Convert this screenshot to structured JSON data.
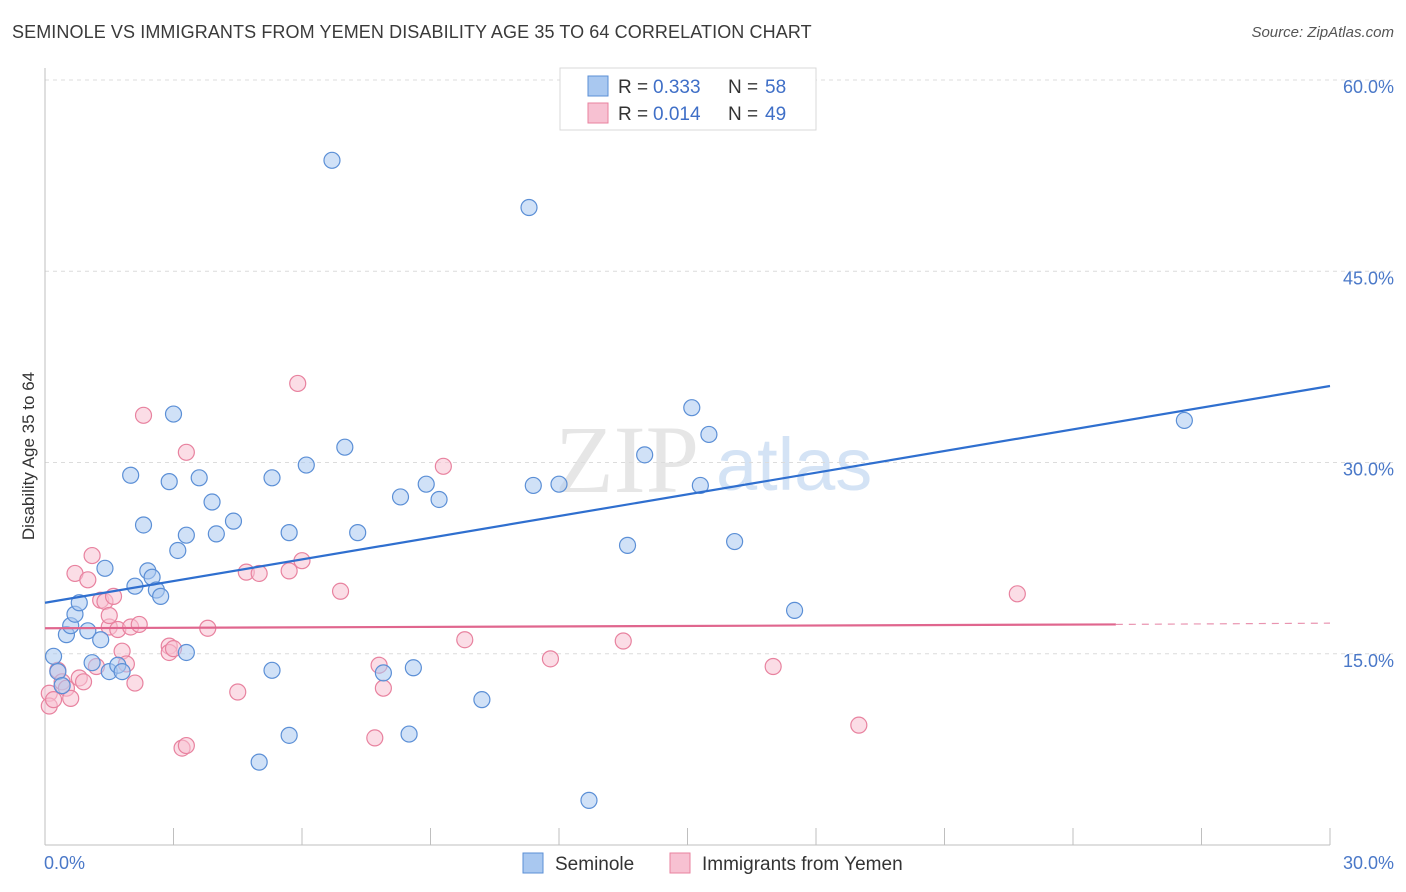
{
  "header": {
    "title": "SEMINOLE VS IMMIGRANTS FROM YEMEN DISABILITY AGE 35 TO 64 CORRELATION CHART",
    "source": "Source: ZipAtlas.com"
  },
  "watermark": {
    "zip": "ZIP",
    "atlas": "atlas"
  },
  "legend_top": [
    {
      "r_label": "R = ",
      "r_value": "0.333",
      "n_label": "N = ",
      "n_value": "58"
    },
    {
      "r_label": "R = ",
      "r_value": "0.014",
      "n_label": "N = ",
      "n_value": "49"
    }
  ],
  "colors": {
    "seminole_fill": "#a9c8f0",
    "seminole_stroke": "#5b8fd6",
    "seminole_line": "#2f6fcf",
    "yemen_fill": "#f7c1d2",
    "yemen_stroke": "#e8829f",
    "yemen_line": "#e0668e",
    "tick_text": "#4a78c8",
    "grid": "#dcdcdc"
  },
  "chart_data": {
    "type": "scatter",
    "title": "SEMINOLE VS IMMIGRANTS FROM YEMEN DISABILITY AGE 35 TO 64 CORRELATION CHART",
    "xlabel": "",
    "ylabel": "Disability Age 35 to 64",
    "xlim": [
      0,
      30
    ],
    "ylim": [
      0,
      60
    ],
    "x_tick_labels": [
      "0.0%",
      "30.0%"
    ],
    "y_ticks": [
      15,
      30,
      45,
      60
    ],
    "y_tick_labels": [
      "15.0%",
      "30.0%",
      "45.0%",
      "60.0%"
    ],
    "legend_position": "top-center",
    "series": [
      {
        "name": "Seminole",
        "r": 0.333,
        "n": 58,
        "trend": {
          "x": [
            0,
            30
          ],
          "y": [
            19.0,
            36.0
          ]
        },
        "points": [
          [
            0.2,
            14.8
          ],
          [
            0.3,
            13.6
          ],
          [
            0.4,
            12.5
          ],
          [
            0.5,
            16.5
          ],
          [
            0.6,
            17.2
          ],
          [
            0.7,
            18.1
          ],
          [
            0.8,
            19.0
          ],
          [
            1.0,
            16.8
          ],
          [
            1.1,
            14.3
          ],
          [
            1.3,
            16.1
          ],
          [
            1.4,
            21.7
          ],
          [
            1.5,
            13.6
          ],
          [
            1.7,
            14.1
          ],
          [
            1.8,
            13.6
          ],
          [
            2.0,
            29.0
          ],
          [
            2.1,
            20.3
          ],
          [
            2.3,
            25.1
          ],
          [
            2.4,
            21.5
          ],
          [
            2.5,
            21.0
          ],
          [
            2.6,
            20.0
          ],
          [
            2.7,
            19.5
          ],
          [
            2.9,
            28.5
          ],
          [
            3.0,
            33.8
          ],
          [
            3.1,
            23.1
          ],
          [
            3.3,
            24.3
          ],
          [
            3.3,
            15.1
          ],
          [
            3.6,
            28.8
          ],
          [
            3.9,
            26.9
          ],
          [
            4.0,
            24.4
          ],
          [
            4.4,
            25.4
          ],
          [
            5.0,
            6.5
          ],
          [
            5.3,
            13.7
          ],
          [
            5.3,
            28.8
          ],
          [
            5.7,
            8.6
          ],
          [
            5.7,
            24.5
          ],
          [
            6.1,
            29.8
          ],
          [
            6.7,
            53.7
          ],
          [
            7.0,
            31.2
          ],
          [
            7.3,
            24.5
          ],
          [
            7.9,
            13.5
          ],
          [
            8.3,
            27.3
          ],
          [
            8.5,
            8.7
          ],
          [
            8.6,
            13.9
          ],
          [
            8.9,
            28.3
          ],
          [
            9.2,
            27.1
          ],
          [
            10.2,
            11.4
          ],
          [
            11.3,
            50.0
          ],
          [
            11.4,
            28.2
          ],
          [
            12.0,
            28.3
          ],
          [
            12.7,
            3.5
          ],
          [
            13.6,
            23.5
          ],
          [
            14.0,
            30.6
          ],
          [
            15.1,
            34.3
          ],
          [
            15.3,
            28.2
          ],
          [
            15.5,
            32.2
          ],
          [
            16.1,
            23.8
          ],
          [
            17.5,
            18.4
          ],
          [
            26.6,
            33.3
          ]
        ]
      },
      {
        "name": "Immigrants from Yemen",
        "r": 0.014,
        "n": 49,
        "trend": {
          "x": [
            0,
            25
          ],
          "y": [
            17.0,
            17.3
          ]
        },
        "trend_dashed": {
          "x": [
            25,
            30
          ],
          "y": [
            17.3,
            17.4
          ]
        },
        "points": [
          [
            0.1,
            11.9
          ],
          [
            0.1,
            10.9
          ],
          [
            0.2,
            11.4
          ],
          [
            0.3,
            13.7
          ],
          [
            0.4,
            12.8
          ],
          [
            0.5,
            12.3
          ],
          [
            0.6,
            11.5
          ],
          [
            0.7,
            21.3
          ],
          [
            0.8,
            13.1
          ],
          [
            0.9,
            12.8
          ],
          [
            1.0,
            20.8
          ],
          [
            1.1,
            22.7
          ],
          [
            1.2,
            14.0
          ],
          [
            1.3,
            19.2
          ],
          [
            1.4,
            19.1
          ],
          [
            1.5,
            17.1
          ],
          [
            1.5,
            18.0
          ],
          [
            1.7,
            16.9
          ],
          [
            1.8,
            15.2
          ],
          [
            1.9,
            14.2
          ],
          [
            2.0,
            17.1
          ],
          [
            2.1,
            12.7
          ],
          [
            2.2,
            17.3
          ],
          [
            2.3,
            33.7
          ],
          [
            2.9,
            15.6
          ],
          [
            2.9,
            15.1
          ],
          [
            3.2,
            7.6
          ],
          [
            3.3,
            7.8
          ],
          [
            3.3,
            30.8
          ],
          [
            3.8,
            17.0
          ],
          [
            4.5,
            12.0
          ],
          [
            4.7,
            21.4
          ],
          [
            5.0,
            21.3
          ],
          [
            5.7,
            21.5
          ],
          [
            5.9,
            36.2
          ],
          [
            6.0,
            22.3
          ],
          [
            6.9,
            19.9
          ],
          [
            7.7,
            8.4
          ],
          [
            7.8,
            14.1
          ],
          [
            7.9,
            12.3
          ],
          [
            9.3,
            29.7
          ],
          [
            9.8,
            16.1
          ],
          [
            11.8,
            14.6
          ],
          [
            13.5,
            16.0
          ],
          [
            17.0,
            14.0
          ],
          [
            19.0,
            9.4
          ],
          [
            22.7,
            19.7
          ],
          [
            3.0,
            15.4
          ],
          [
            1.6,
            19.5
          ]
        ]
      }
    ]
  },
  "legend_bottom": [
    {
      "label": "Seminole"
    },
    {
      "label": "Immigrants from Yemen"
    }
  ]
}
